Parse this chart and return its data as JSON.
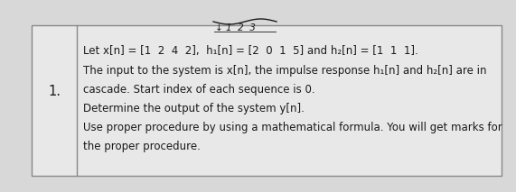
{
  "number": "1.",
  "line1": "Let x[n] = [1  2  4  2],  h₁[n] = [2  0  1  5] and h₂[n] = [1  1  1].",
  "line2": "The input to the system is x[n], the impulse response h₁[n] and h₂[n] are in",
  "line3": "cascade. Start index of each sequence is 0.",
  "line4": "Determine the output of the system y[n].",
  "line5": "Use proper procedure by using a mathematical formula. You will get marks for",
  "line6": "the proper procedure.",
  "annotation": "↓ 1 2  3",
  "bg_color": "#d8d8d8",
  "table_bg": "#e8e8e8",
  "cell_bg": "#e8e8e8",
  "text_color": "#1a1a1a",
  "border_color": "#888888",
  "font_size": 8.5,
  "number_font_size": 10.5
}
